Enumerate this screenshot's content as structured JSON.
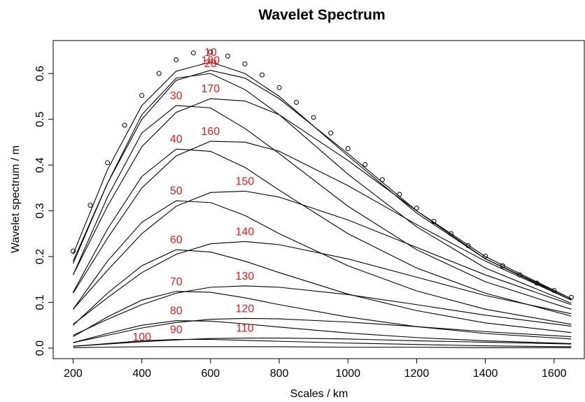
{
  "chart_data": {
    "type": "line",
    "title": "Wavelet Spectrum",
    "xlabel": "Scales / km",
    "ylabel": "Wavelet spectrum / m",
    "xlim": [
      142,
      1690
    ],
    "ylim": [
      -0.023,
      0.672
    ],
    "xticks": [
      200,
      400,
      600,
      800,
      1000,
      1200,
      1400,
      1600
    ],
    "yticks": [
      {
        "value": 0,
        "label": "0.0"
      },
      0.1,
      0.2,
      0.3,
      0.4,
      0.5,
      0.6
    ],
    "label_color": "#e31a1c",
    "points": {
      "x": [
        200,
        250,
        300,
        350,
        400,
        450,
        500,
        550,
        600,
        650,
        700,
        750,
        800,
        850,
        900,
        950,
        1000,
        1050,
        1100,
        1150,
        1200,
        1250,
        1300,
        1350,
        1400,
        1450,
        1500,
        1550,
        1600,
        1650
      ],
      "values": [
        0.212,
        0.312,
        0.405,
        0.487,
        0.552,
        0.6,
        0.63,
        0.645,
        0.647,
        0.638,
        0.621,
        0.597,
        0.569,
        0.537,
        0.504,
        0.47,
        0.436,
        0.401,
        0.368,
        0.336,
        0.306,
        0.277,
        0.25,
        0.224,
        0.201,
        0.18,
        0.16,
        0.142,
        0.126,
        0.111
      ]
    },
    "x": [
      200,
      300,
      400,
      500,
      600,
      700,
      800,
      1000,
      1200,
      1400,
      1650
    ],
    "series": [
      {
        "name": "10",
        "color": "#000000",
        "values": [
          0.205,
          0.39,
          0.53,
          0.605,
          0.625,
          0.6,
          0.55,
          0.42,
          0.295,
          0.195,
          0.108
        ]
      },
      {
        "name": "20",
        "color": "#000000",
        "values": [
          0.185,
          0.36,
          0.51,
          0.59,
          0.6,
          0.565,
          0.51,
          0.38,
          0.265,
          0.175,
          0.098
        ]
      },
      {
        "name": "30",
        "color": "#000000",
        "values": [
          0.16,
          0.33,
          0.47,
          0.53,
          0.525,
          0.48,
          0.425,
          0.31,
          0.215,
          0.145,
          0.085
        ]
      },
      {
        "name": "40",
        "color": "#000000",
        "values": [
          0.122,
          0.26,
          0.375,
          0.435,
          0.43,
          0.395,
          0.345,
          0.25,
          0.175,
          0.12,
          0.07
        ]
      },
      {
        "name": "50",
        "color": "#000000",
        "values": [
          0.085,
          0.19,
          0.275,
          0.322,
          0.318,
          0.29,
          0.25,
          0.18,
          0.125,
          0.085,
          0.052
        ]
      },
      {
        "name": "60",
        "color": "#000000",
        "values": [
          0.05,
          0.12,
          0.18,
          0.215,
          0.21,
          0.19,
          0.165,
          0.118,
          0.082,
          0.055,
          0.034
        ]
      },
      {
        "name": "70",
        "color": "#000000",
        "values": [
          0.025,
          0.068,
          0.105,
          0.124,
          0.122,
          0.11,
          0.095,
          0.068,
          0.047,
          0.032,
          0.02
        ]
      },
      {
        "name": "80",
        "color": "#000000",
        "values": [
          0.012,
          0.032,
          0.05,
          0.06,
          0.059,
          0.053,
          0.046,
          0.033,
          0.023,
          0.016,
          0.01
        ]
      },
      {
        "name": "90",
        "color": "#000000",
        "values": [
          0.004,
          0.01,
          0.016,
          0.019,
          0.019,
          0.017,
          0.015,
          0.011,
          0.008,
          0.005,
          0.003
        ]
      },
      {
        "name": "100",
        "color": "#000000",
        "values": [
          0.001,
          0.002,
          0.003,
          0.003,
          0.003,
          0.003,
          0.003,
          0.002,
          0.002,
          0.001,
          0.001
        ]
      },
      {
        "name": "110",
        "color": "#000000",
        "values": [
          0.004,
          0.009,
          0.014,
          0.018,
          0.021,
          0.022,
          0.022,
          0.02,
          0.016,
          0.013,
          0.009
        ]
      },
      {
        "name": "120",
        "color": "#000000",
        "values": [
          0.012,
          0.028,
          0.044,
          0.056,
          0.063,
          0.065,
          0.064,
          0.057,
          0.047,
          0.036,
          0.025
        ]
      },
      {
        "name": "130",
        "color": "#000000",
        "values": [
          0.028,
          0.063,
          0.095,
          0.12,
          0.133,
          0.136,
          0.133,
          0.117,
          0.095,
          0.072,
          0.048
        ]
      },
      {
        "name": "140",
        "color": "#000000",
        "values": [
          0.052,
          0.11,
          0.165,
          0.205,
          0.228,
          0.233,
          0.226,
          0.195,
          0.155,
          0.115,
          0.075
        ]
      },
      {
        "name": "150",
        "color": "#000000",
        "values": [
          0.085,
          0.17,
          0.25,
          0.31,
          0.34,
          0.343,
          0.33,
          0.28,
          0.22,
          0.16,
          0.095
        ]
      },
      {
        "name": "160",
        "color": "#000000",
        "values": [
          0.12,
          0.24,
          0.35,
          0.42,
          0.452,
          0.45,
          0.43,
          0.355,
          0.27,
          0.19,
          0.105
        ]
      },
      {
        "name": "170",
        "color": "#000000",
        "values": [
          0.16,
          0.31,
          0.44,
          0.515,
          0.545,
          0.54,
          0.51,
          0.41,
          0.3,
          0.2,
          0.108
        ]
      },
      {
        "name": "180",
        "color": "#000000",
        "values": [
          0.19,
          0.36,
          0.5,
          0.585,
          0.607,
          0.59,
          0.545,
          0.425,
          0.3,
          0.195,
          0.105
        ]
      }
    ]
  }
}
